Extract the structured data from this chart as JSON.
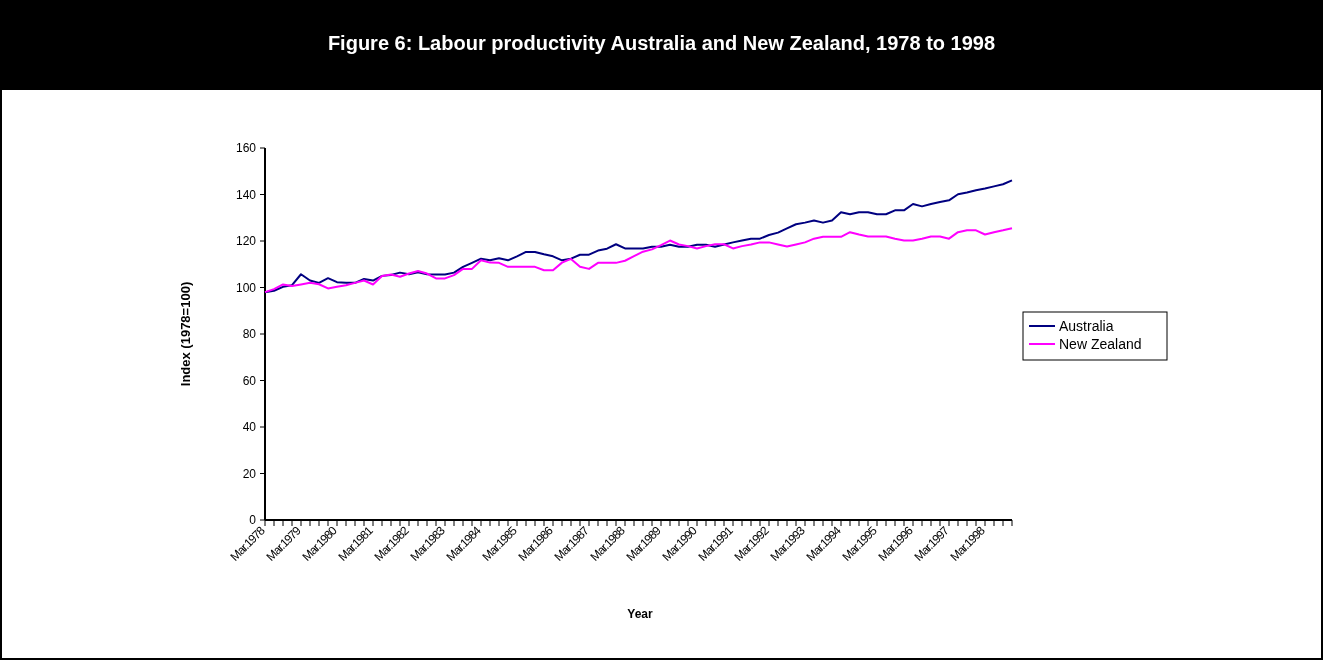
{
  "chart_data": {
    "type": "line",
    "title": "Figure 6: Labour productivity Australia and New Zealand, 1978 to 1998",
    "xlabel": "Year",
    "ylabel": "Index (1978=100)",
    "categories": [
      "Mar.1978",
      null,
      null,
      null,
      "Mar.1979",
      null,
      null,
      null,
      "Mar.1980",
      null,
      null,
      null,
      "Mar.1981",
      null,
      null,
      null,
      "Mar.1982",
      null,
      null,
      null,
      "Mar.1983",
      null,
      null,
      null,
      "Mar.1984",
      null,
      null,
      null,
      "Mar.1985",
      null,
      null,
      null,
      "Mar.1986",
      null,
      null,
      null,
      "Mar.1987",
      null,
      null,
      null,
      "Mar.1988",
      null,
      null,
      null,
      "Mar.1989",
      null,
      null,
      null,
      "Mar.1990",
      null,
      null,
      null,
      "Mar.1991",
      null,
      null,
      null,
      "Mar.1992",
      null,
      null,
      null,
      "Mar.1993",
      null,
      null,
      null,
      "Mar.1994",
      null,
      null,
      null,
      "Mar.1995",
      null,
      null,
      null,
      "Mar.1996",
      null,
      null,
      null,
      "Mar.1997",
      null,
      null,
      null,
      "Mar.1998",
      null,
      null,
      null
    ],
    "series": [
      {
        "name": "Australia",
        "color": "#000080",
        "values": [
          98,
          98.6,
          100.3,
          101,
          105.7,
          103,
          102,
          104,
          102.3,
          102,
          102,
          103.7,
          103,
          105,
          105.4,
          106.4,
          105.7,
          106.6,
          105.7,
          105.6,
          105.6,
          106.4,
          108.9,
          110.6,
          112.4,
          111.7,
          112.6,
          111.7,
          113.4,
          115.3,
          115.3,
          114.3,
          113.4,
          111.7,
          112.4,
          114.1,
          114.1,
          115.9,
          116.7,
          118.6,
          116.8,
          116.8,
          116.8,
          117.5,
          117.5,
          118.4,
          117.5,
          117.5,
          118.4,
          118.4,
          117.5,
          118.5,
          119.4,
          120.2,
          121,
          121,
          122.6,
          123.6,
          125.4,
          127.2,
          127.9,
          128.8,
          127.9,
          128.8,
          132.4,
          131.5,
          132.4,
          132.4,
          131.5,
          131.5,
          133.2,
          133.2,
          135.9,
          134.9,
          135.9,
          136.8,
          137.5,
          140.1,
          140.9,
          141.8,
          142.6,
          143.5,
          144.4,
          146.1
        ]
      },
      {
        "name": "New Zealand",
        "color": "#ff00ff",
        "values": [
          98,
          99.3,
          101.3,
          100.6,
          101.3,
          102,
          101.4,
          99.6,
          100.3,
          101,
          102,
          103,
          101.3,
          104.9,
          105.6,
          104.6,
          106,
          107.1,
          106,
          103.9,
          103.9,
          105.3,
          108,
          108,
          111.7,
          110.7,
          110.6,
          108.9,
          108.9,
          108.9,
          108.9,
          107.4,
          107.4,
          110.7,
          112.3,
          108.9,
          108,
          110.6,
          110.6,
          110.6,
          111.5,
          113.5,
          115.4,
          116.4,
          118.2,
          120.2,
          118.5,
          117.8,
          116.8,
          117.8,
          118.6,
          118.6,
          116.8,
          117.8,
          118.5,
          119.4,
          119.4,
          118.5,
          117.6,
          118.5,
          119.4,
          121,
          121.8,
          121.8,
          121.8,
          123.8,
          122.8,
          121.9,
          121.9,
          121.9,
          121,
          120.2,
          120.2,
          121,
          121.9,
          121.9,
          121,
          123.8,
          124.6,
          124.6,
          122.8,
          123.8,
          124.6,
          125.5
        ]
      }
    ],
    "ylim": [
      0,
      160
    ],
    "yticks": [
      0,
      20,
      40,
      60,
      80,
      100,
      120,
      140,
      160
    ],
    "legend": "right",
    "grid": false,
    "marker": "none",
    "line_style": "solid"
  }
}
